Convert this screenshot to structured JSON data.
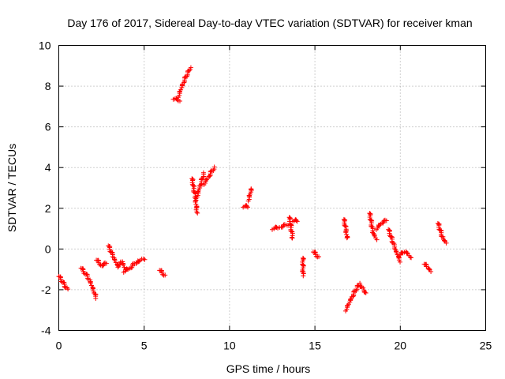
{
  "chart_data": {
    "type": "scatter",
    "title": "Day 176 of 2017, Sidereal Day-to-day VTEC variation (SDTVAR) for receiver kman",
    "xlabel": "GPS time / hours",
    "ylabel": "SDTVAR / TECUs",
    "xlim": [
      0,
      25
    ],
    "ylim": [
      -4,
      10
    ],
    "xticks": [
      0,
      5,
      10,
      15,
      20,
      25
    ],
    "yticks": [
      -4,
      -2,
      0,
      2,
      4,
      6,
      8,
      10
    ],
    "grid": true,
    "marker": "plus",
    "color": "#ff0000",
    "series": [
      {
        "name": "SDTVAR",
        "segments": [
          {
            "x": [
              0.0,
              0.5
            ],
            "y": [
              -1.3,
              -2.0
            ]
          },
          {
            "x": [
              1.3,
              1.8,
              2.2
            ],
            "y": [
              -0.9,
              -1.5,
              -2.4
            ]
          },
          {
            "x": [
              2.2,
              2.5,
              2.8
            ],
            "y": [
              -0.5,
              -0.8,
              -0.7
            ]
          },
          {
            "x": [
              2.9,
              3.2,
              3.5
            ],
            "y": [
              0.2,
              -0.4,
              -0.9
            ]
          },
          {
            "x": [
              3.5,
              3.7,
              3.9
            ],
            "y": [
              -0.8,
              -0.6,
              -1.0
            ]
          },
          {
            "x": [
              3.8,
              4.2,
              4.6,
              5.0
            ],
            "y": [
              -1.1,
              -0.9,
              -0.6,
              -0.5
            ]
          },
          {
            "x": [
              5.9,
              6.2
            ],
            "y": [
              -1.0,
              -1.3
            ]
          },
          {
            "x": [
              6.7,
              7.1
            ],
            "y": [
              7.4,
              7.3
            ]
          },
          {
            "x": [
              7.0,
              7.3,
              7.7
            ],
            "y": [
              7.5,
              8.2,
              8.9
            ]
          },
          {
            "x": [
              7.8,
              8.0,
              8.1
            ],
            "y": [
              3.5,
              2.5,
              1.8
            ]
          },
          {
            "x": [
              8.1,
              8.3,
              8.5
            ],
            "y": [
              2.6,
              3.2,
              3.7
            ]
          },
          {
            "x": [
              8.5,
              8.8,
              9.1
            ],
            "y": [
              3.2,
              3.6,
              4.0
            ]
          },
          {
            "x": [
              10.8,
              11.1
            ],
            "y": [
              2.1,
              2.1
            ]
          },
          {
            "x": [
              11.1,
              11.3
            ],
            "y": [
              2.4,
              3.0
            ]
          },
          {
            "x": [
              12.5,
              13.0,
              13.4
            ],
            "y": [
              1.0,
              1.1,
              1.2
            ]
          },
          {
            "x": [
              13.5,
              13.7
            ],
            "y": [
              1.6,
              0.5
            ]
          },
          {
            "x": [
              13.7,
              14.0
            ],
            "y": [
              1.4,
              1.4
            ]
          },
          {
            "x": [
              14.3,
              14.3
            ],
            "y": [
              -0.4,
              -1.3
            ]
          },
          {
            "x": [
              14.9,
              15.2
            ],
            "y": [
              -0.1,
              -0.4
            ]
          },
          {
            "x": [
              16.7,
              16.8,
              16.9
            ],
            "y": [
              1.5,
              1.0,
              0.5
            ]
          },
          {
            "x": [
              16.8,
              17.2,
              17.6,
              18.0
            ],
            "y": [
              -3.0,
              -2.3,
              -1.7,
              -2.2
            ]
          },
          {
            "x": [
              18.2,
              18.4,
              18.6
            ],
            "y": [
              1.8,
              0.8,
              0.5
            ]
          },
          {
            "x": [
              18.6,
              18.9,
              19.2
            ],
            "y": [
              1.0,
              1.3,
              1.4
            ]
          },
          {
            "x": [
              19.3,
              19.7,
              20.0
            ],
            "y": [
              1.0,
              0.0,
              -0.6
            ]
          },
          {
            "x": [
              19.9,
              20.3,
              20.6
            ],
            "y": [
              -0.3,
              -0.1,
              -0.4
            ]
          },
          {
            "x": [
              21.4,
              21.6,
              21.8
            ],
            "y": [
              -0.7,
              -0.9,
              -1.1
            ]
          },
          {
            "x": [
              22.2,
              22.5,
              22.7
            ],
            "y": [
              1.3,
              0.5,
              0.3
            ]
          }
        ]
      }
    ]
  }
}
